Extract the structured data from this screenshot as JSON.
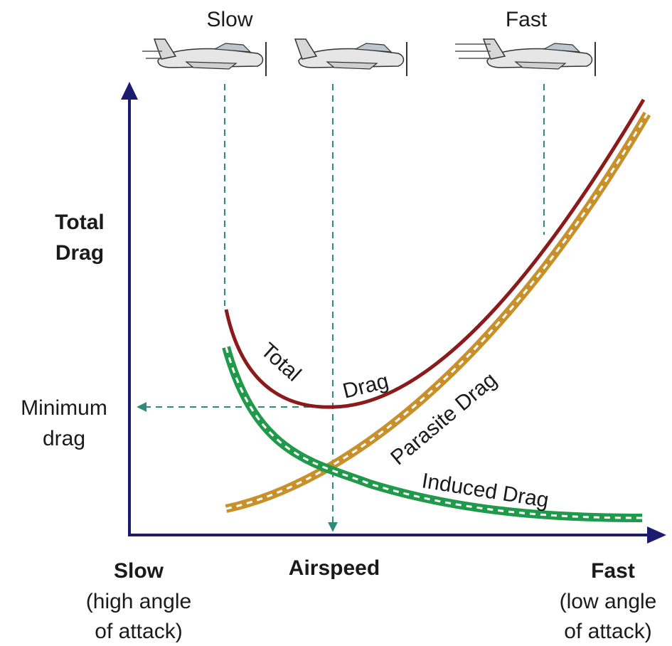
{
  "top_labels": [
    "Slow",
    "Fast"
  ],
  "y_axis_label": [
    "Total",
    "Drag"
  ],
  "minimum_drag_label": [
    "Minimum",
    "drag"
  ],
  "curves": {
    "total_drag": [
      "Total",
      "Drag"
    ],
    "parasite_drag": "Parasite Drag",
    "induced_drag": "Induced Drag"
  },
  "x_axis": {
    "left": {
      "title": "Slow",
      "subtitle": [
        "(high angle",
        "of attack)"
      ]
    },
    "center": "Airspeed",
    "right": {
      "title": "Fast",
      "subtitle": [
        "(low angle",
        "of attack)"
      ]
    }
  }
}
